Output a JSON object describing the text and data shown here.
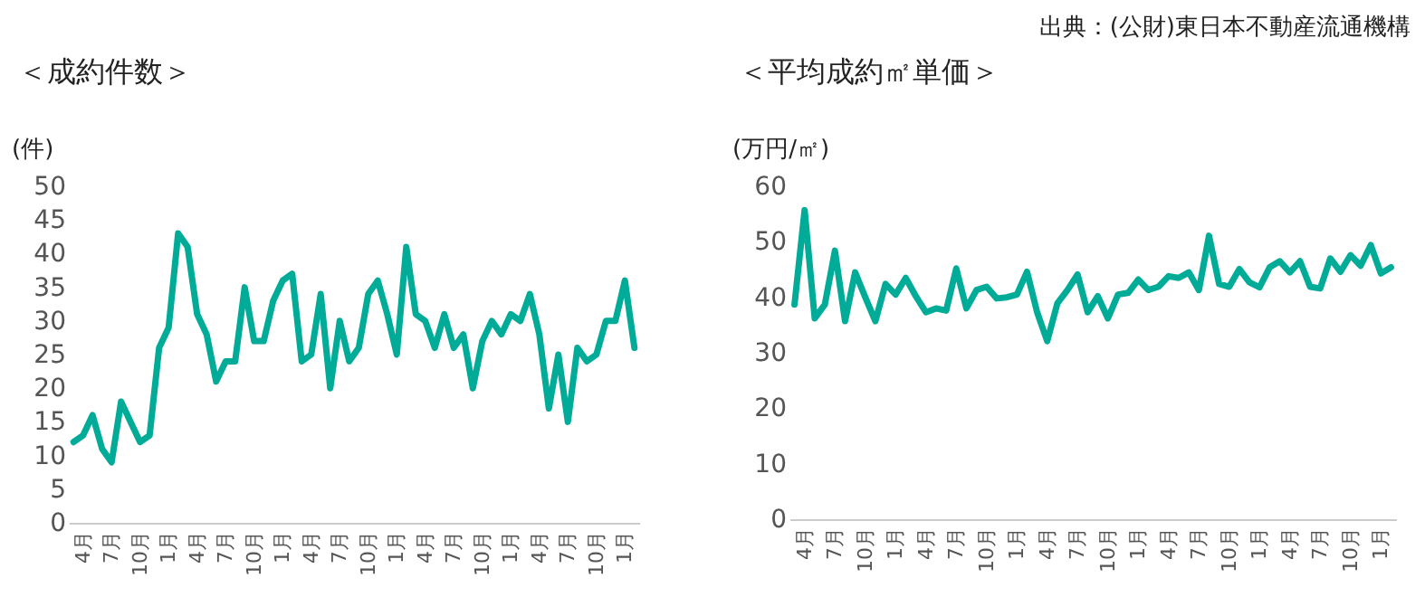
{
  "chart_data": [
    {
      "type": "line",
      "title": "＜成約件数＞",
      "ylabel": "(件)",
      "categories": [
        null,
        "4月",
        null,
        null,
        "7月",
        null,
        null,
        "10月",
        null,
        null,
        "1月",
        null,
        null,
        "4月",
        null,
        null,
        "7月",
        null,
        null,
        "10月",
        null,
        null,
        "1月",
        null,
        null,
        "4月",
        null,
        null,
        "7月",
        null,
        null,
        "10月",
        null,
        null,
        "1月",
        null,
        null,
        "4月",
        null,
        null,
        "7月",
        null,
        null,
        "10月",
        null,
        null,
        "1月",
        null,
        null,
        "4月",
        null,
        null,
        "7月",
        null,
        null,
        "10月",
        null,
        null,
        "1月",
        null
      ],
      "series": [
        {
          "color": "#00ac97",
          "values": [
            12,
            13,
            16,
            11,
            9,
            18,
            15,
            12,
            13,
            26,
            29,
            43,
            41,
            31,
            28,
            21,
            24,
            24,
            35,
            27,
            27,
            33,
            36,
            37,
            24,
            25,
            34,
            20,
            30,
            24,
            26,
            34,
            36,
            31,
            25,
            41,
            31,
            30,
            26,
            31,
            26,
            28,
            20,
            27,
            30,
            28,
            31,
            30,
            34,
            28,
            17,
            25,
            15,
            26,
            24,
            25,
            30,
            30,
            36,
            26
          ]
        }
      ],
      "ylim": [
        0,
        50
      ],
      "yticks": [
        0,
        5,
        10,
        15,
        20,
        25,
        30,
        35,
        40,
        45,
        50
      ]
    },
    {
      "type": "line",
      "title": "＜平均成約㎡単価＞",
      "ylabel": "(万円/㎡)",
      "annotations": [
        "出典：(公財)東日本不動産流通機構"
      ],
      "categories": [
        null,
        "4月",
        null,
        null,
        "7月",
        null,
        null,
        "10月",
        null,
        null,
        "1月",
        null,
        null,
        "4月",
        null,
        null,
        "7月",
        null,
        null,
        "10月",
        null,
        null,
        "1月",
        null,
        null,
        "4月",
        null,
        null,
        "7月",
        null,
        null,
        "10月",
        null,
        null,
        "1月",
        null,
        null,
        "4月",
        null,
        null,
        "7月",
        null,
        null,
        "10月",
        null,
        null,
        "1月",
        null,
        null,
        "4月",
        null,
        null,
        "7月",
        null,
        null,
        "10月",
        null,
        null,
        "1月",
        null
      ],
      "series": [
        {
          "color": "#00ac97",
          "values": [
            38.7,
            55.7,
            36.2,
            38.7,
            48.4,
            35.7,
            44.5,
            40,
            35.7,
            42.4,
            40.5,
            43.5,
            40.2,
            37.3,
            38,
            37.6,
            45.2,
            38,
            41.3,
            41.9,
            39.8,
            40,
            40.5,
            44.6,
            37.3,
            32.1,
            38.9,
            41.3,
            44.1,
            37.3,
            40.2,
            36.2,
            40.5,
            40.8,
            43.2,
            41.3,
            41.9,
            43.8,
            43.5,
            44.5,
            41.3,
            51.1,
            42.4,
            41.9,
            45.1,
            42.7,
            41.8,
            45.4,
            46.5,
            44.5,
            46.5,
            41.9,
            41.6,
            47,
            44.6,
            47.6,
            45.7,
            49.4,
            44.3,
            45.4
          ]
        }
      ],
      "ylim": [
        0,
        60
      ],
      "yticks": [
        0,
        10,
        20,
        30,
        40,
        50,
        60
      ]
    }
  ]
}
